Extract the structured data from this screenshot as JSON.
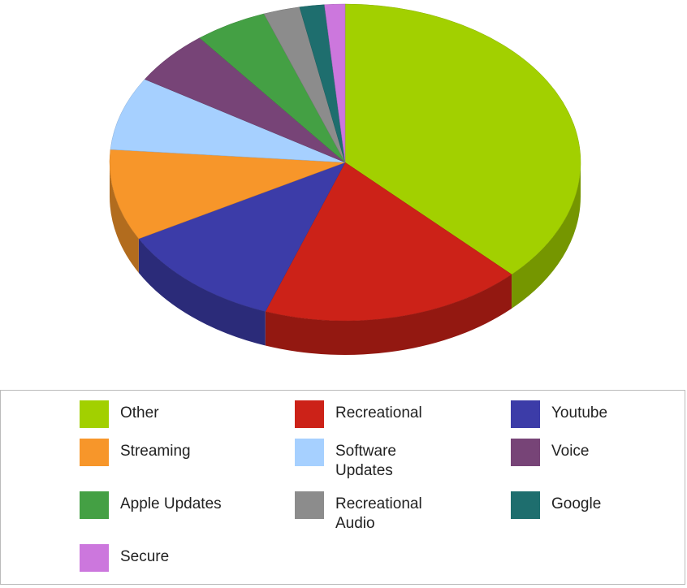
{
  "chart_data": {
    "type": "pie",
    "categories": [
      "Other",
      "Recreational",
      "Youtube",
      "Streaming",
      "Software Updates",
      "Voice",
      "Apple Updates",
      "Recreational Audio",
      "Google",
      "Secure"
    ],
    "values": [
      37.5,
      18,
      11.5,
      9.3,
      7.5,
      5.6,
      5,
      2.5,
      1.7,
      1.4
    ],
    "colors": [
      "#a2d000",
      "#cc2218",
      "#3c3ca8",
      "#f7962a",
      "#a6d0ff",
      "#774477",
      "#44a044",
      "#8c8c8c",
      "#1e6e6e",
      "#cc77dd"
    ],
    "legend": "bottom"
  }
}
